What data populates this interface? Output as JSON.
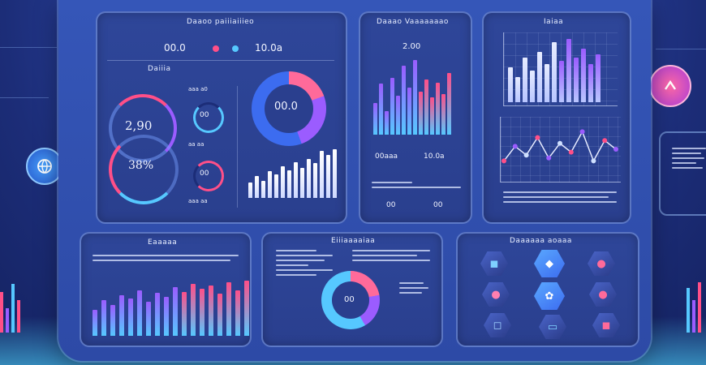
{
  "screen": {
    "panel1": {
      "title": "Daaoo paiiiaiiieo",
      "kpi_a": "00.0",
      "kpi_b": "10.0a",
      "subtitle": "Daiiia",
      "gauge_a": "2,90",
      "gauge_b": "38%",
      "small_a": "00",
      "small_b": "00",
      "small_labels": [
        "aaa a0",
        "aa aa",
        "aaa aa"
      ],
      "donut_value": "00.0",
      "mini_bars": [
        20,
        28,
        22,
        34,
        30,
        40,
        35,
        45,
        38,
        50,
        44,
        60,
        55,
        62
      ]
    },
    "panel2": {
      "title": "Daaao Vaaaaaaao",
      "top_value": "2.00",
      "bars": [
        40,
        65,
        30,
        72,
        50,
        88,
        60,
        95,
        55,
        70,
        48,
        66,
        52,
        78
      ],
      "label_a": "00aaa",
      "label_b": "10.0a",
      "foot_a": "00",
      "foot_b": "00"
    },
    "panel3": {
      "title": "Iaiaa",
      "bars": [
        55,
        40,
        70,
        50,
        80,
        60,
        95,
        65,
        100,
        70,
        85,
        60,
        75
      ],
      "line_points": [
        30,
        55,
        40,
        70,
        35,
        60,
        45,
        80,
        30,
        65,
        50
      ]
    },
    "panel4": {
      "title": "Eaaaaa",
      "bars": [
        40,
        55,
        48,
        62,
        58,
        70,
        52,
        66,
        60,
        75,
        68,
        80,
        72,
        78,
        65,
        82,
        70,
        85
      ]
    },
    "panel5": {
      "title": "Eiiiaaaaiaa",
      "donut_value": "00"
    },
    "panel6": {
      "title": "Daaaaaa aoaaa"
    }
  },
  "colors": {
    "pink": "#ff4f88",
    "violet": "#9b5cff",
    "cyan": "#56c8ff",
    "blue": "#3c6cf0"
  },
  "icons": {
    "top_left": "shopping-bag-icon",
    "left_mid": "globe-icon",
    "right_top": "nav-arrow-icon"
  }
}
